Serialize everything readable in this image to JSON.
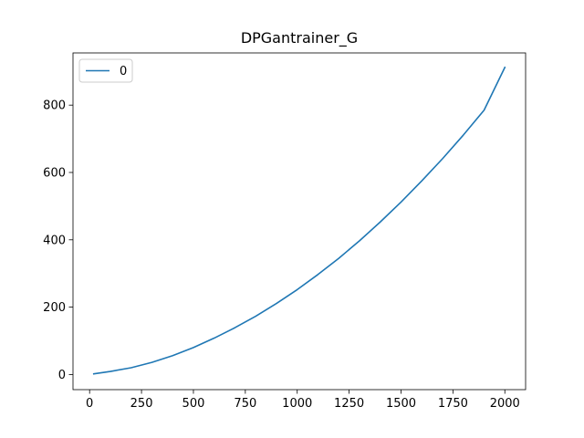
{
  "chart_data": {
    "type": "line",
    "title": "DPGantrainer_G",
    "xlabel": "",
    "ylabel": "",
    "xlim": [
      -80,
      2100
    ],
    "ylim": [
      -45,
      955
    ],
    "xticks": [
      0,
      250,
      500,
      750,
      1000,
      1250,
      1500,
      1750,
      2000
    ],
    "yticks": [
      0,
      200,
      400,
      600,
      800
    ],
    "grid": false,
    "legend_placement": "top-left",
    "colors": {
      "series": "#1f77b4"
    },
    "series": [
      {
        "name": "0",
        "x": [
          20,
          100,
          200,
          300,
          400,
          500,
          600,
          700,
          800,
          900,
          1000,
          1100,
          1200,
          1300,
          1400,
          1500,
          1600,
          1700,
          1800,
          1900,
          2000
        ],
        "values": [
          2,
          9,
          20,
          36,
          56,
          80,
          108,
          139,
          173,
          211,
          252,
          297,
          345,
          397,
          453,
          512,
          575,
          641,
          711,
          785,
          912
        ]
      }
    ]
  }
}
